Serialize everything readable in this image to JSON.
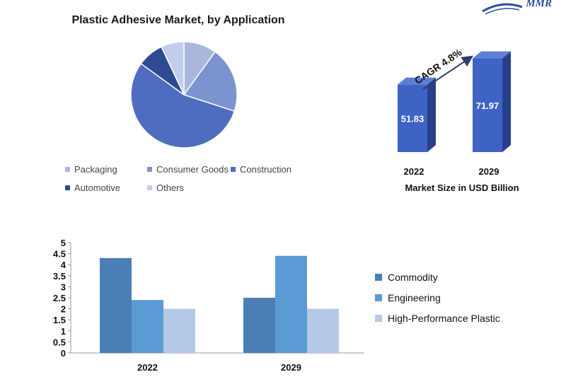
{
  "brand": {
    "logo_text": "MMR"
  },
  "chart_data": [
    {
      "type": "pie",
      "title": "Plastic Adhesive Market, by Application",
      "categories": [
        "Packaging",
        "Consumer Goods",
        "Construction",
        "Automotive",
        "Others"
      ],
      "values": [
        10,
        20,
        55,
        8,
        7
      ],
      "colors": [
        "#a8b7db",
        "#7b93cf",
        "#4e6cc0",
        "#2e4a91",
        "#c2cde9"
      ],
      "legend": "bottom"
    },
    {
      "type": "bar",
      "title": "",
      "categories": [
        "2022",
        "2029"
      ],
      "values": [
        51.83,
        71.97
      ],
      "labels": [
        "51.83",
        "71.97"
      ],
      "annotation": "CAGR 4.8%",
      "xlabel": "Market Size in USD Billion",
      "color": "#3f63c5"
    },
    {
      "type": "bar",
      "title": "",
      "categories": [
        "2022",
        "2029"
      ],
      "series": [
        {
          "name": "Commodity",
          "values": [
            4.3,
            2.5
          ],
          "color": "#4a7fb5"
        },
        {
          "name": "Engineering",
          "values": [
            2.4,
            4.4
          ],
          "color": "#5b9bd5"
        },
        {
          "name": "High-Performance Plastic",
          "values": [
            2.0,
            2.0
          ],
          "color": "#b4c9e8"
        }
      ],
      "ylim": [
        0,
        5
      ],
      "yticks": [
        "0",
        "0.5",
        "1",
        "1.5",
        "2",
        "2.5",
        "3",
        "3.5",
        "4",
        "4.5",
        "5"
      ],
      "legend": "right"
    }
  ]
}
